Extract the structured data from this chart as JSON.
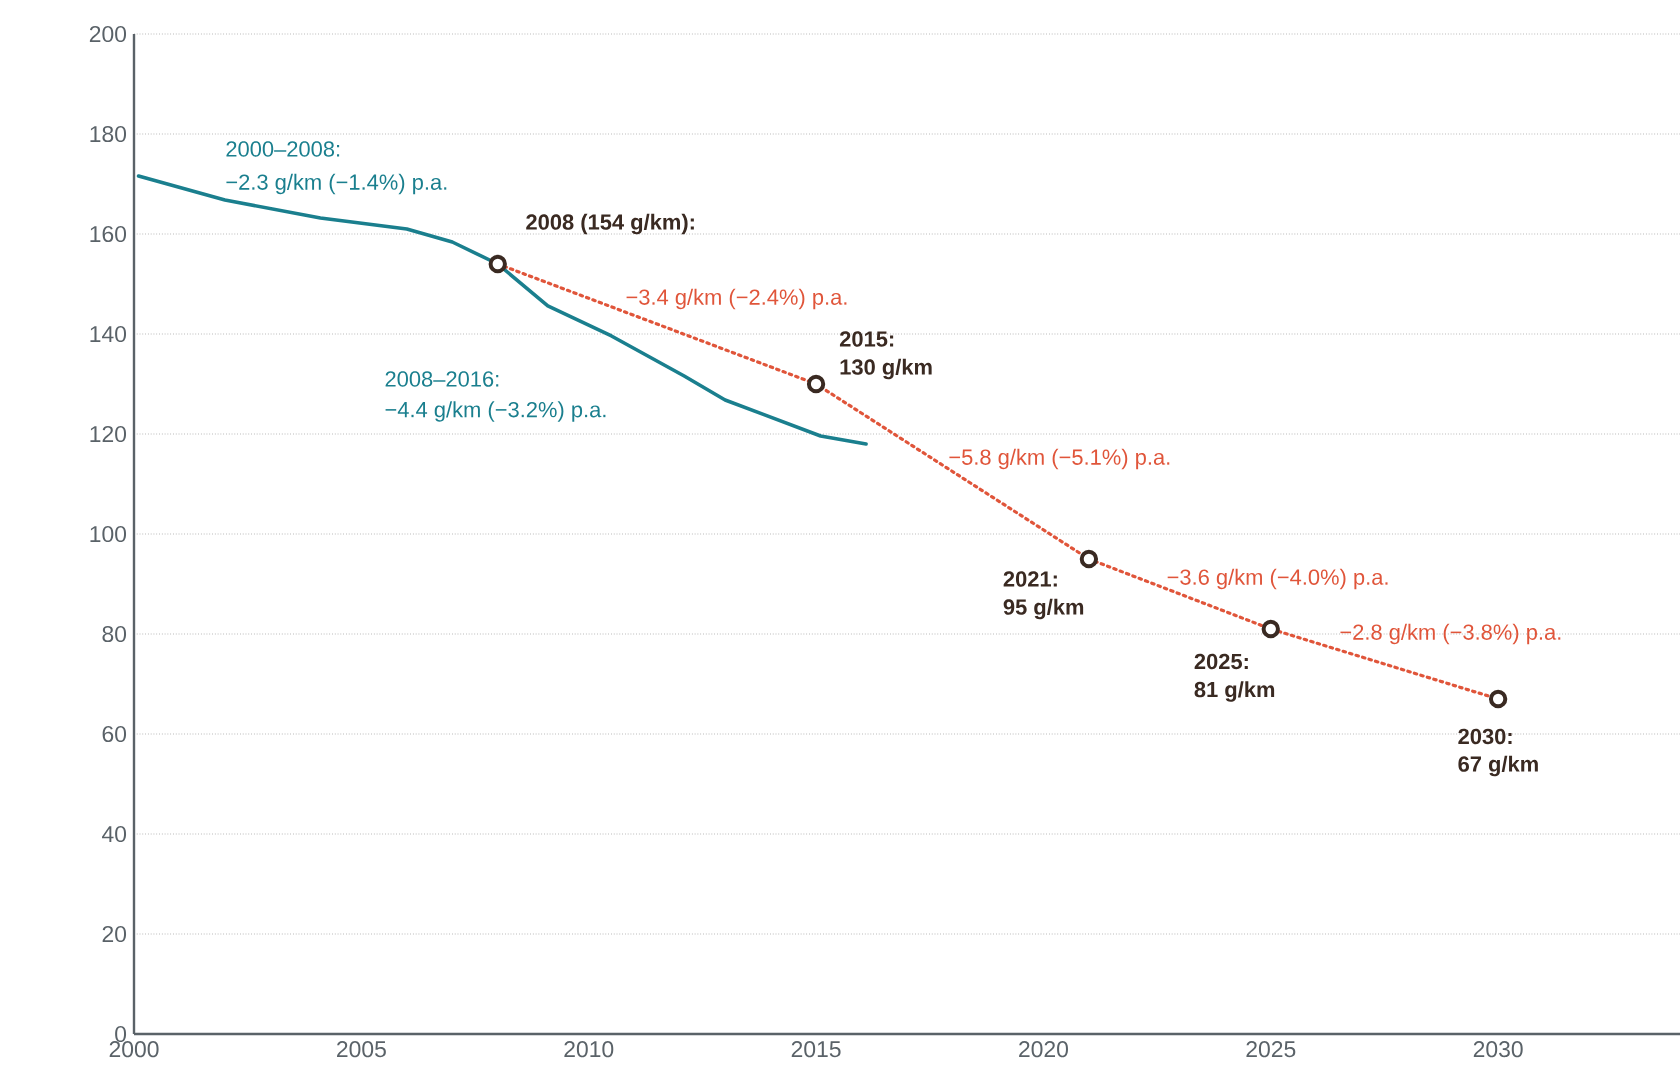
{
  "chart_data": {
    "type": "line",
    "xlim": [
      2000,
      2034
    ],
    "ylim": [
      0,
      200
    ],
    "xticks": [
      2000,
      2005,
      2010,
      2015,
      2020,
      2025,
      2030
    ],
    "yticks": [
      0,
      20,
      40,
      60,
      80,
      100,
      120,
      140,
      160,
      180,
      200
    ],
    "grid": "y",
    "series": [
      {
        "color": "#1a7f8e",
        "line_style": "solid",
        "marker": "none",
        "x": [
          2000.1,
          2002.0,
          2004.1,
          2006.0,
          2007.0,
          2008.0,
          2009.1,
          2010.5,
          2012.1,
          2013.0,
          2015.1,
          2016.1
        ],
        "values": [
          171.6,
          166.8,
          163.2,
          161,
          158.4,
          154,
          145.6,
          139.6,
          131.6,
          126.8,
          119.6,
          118
        ]
      },
      {
        "color": "#e0553a",
        "line_style": "dotted",
        "marker": "circle",
        "x": [
          2008,
          2015,
          2021,
          2025,
          2030
        ],
        "values": [
          154,
          130,
          95,
          81,
          67
        ]
      }
    ],
    "annotations": [
      {
        "text": "2000–2008:",
        "x": 2004.1,
        "y": 163.2
      },
      {
        "text": "−2.3 g/km (−1.4%) p.a.",
        "x": 2004.1,
        "y": 163.2
      },
      {
        "text": "2008 (154 g/km):",
        "x": 2008,
        "y": 154
      },
      {
        "text": "−3.4 g/km (−2.4%) p.a.",
        "x": 2011.5,
        "y": 142
      },
      {
        "text": "2015:",
        "x": 2015,
        "y": 130
      },
      {
        "text": "130 g/km",
        "x": 2015,
        "y": 130
      },
      "2008–2016:",
      "−4.4 g/km (−3.2%) p.a.",
      {
        "text": "−5.8 g/km (−5.1%) p.a.",
        "x": 2018,
        "y": 112.5
      },
      {
        "text": "2021:",
        "x": 2021,
        "y": 95
      },
      {
        "text": "95 g/km",
        "x": 2021,
        "y": 95
      },
      {
        "text": "−3.6 g/km (−4.0%) p.a.",
        "x": 2023,
        "y": 88
      },
      {
        "text": "2025:",
        "x": 2025,
        "y": 81
      },
      {
        "text": "81 g/km",
        "x": 2025,
        "y": 81
      },
      {
        "text": "−2.8 g/km (−3.8%) p.a.",
        "x": 2027.5,
        "y": 74
      },
      {
        "text": "2030:",
        "x": 2030,
        "y": 67
      },
      {
        "text": "67 g/km",
        "x": 2030,
        "y": 67
      }
    ]
  }
}
